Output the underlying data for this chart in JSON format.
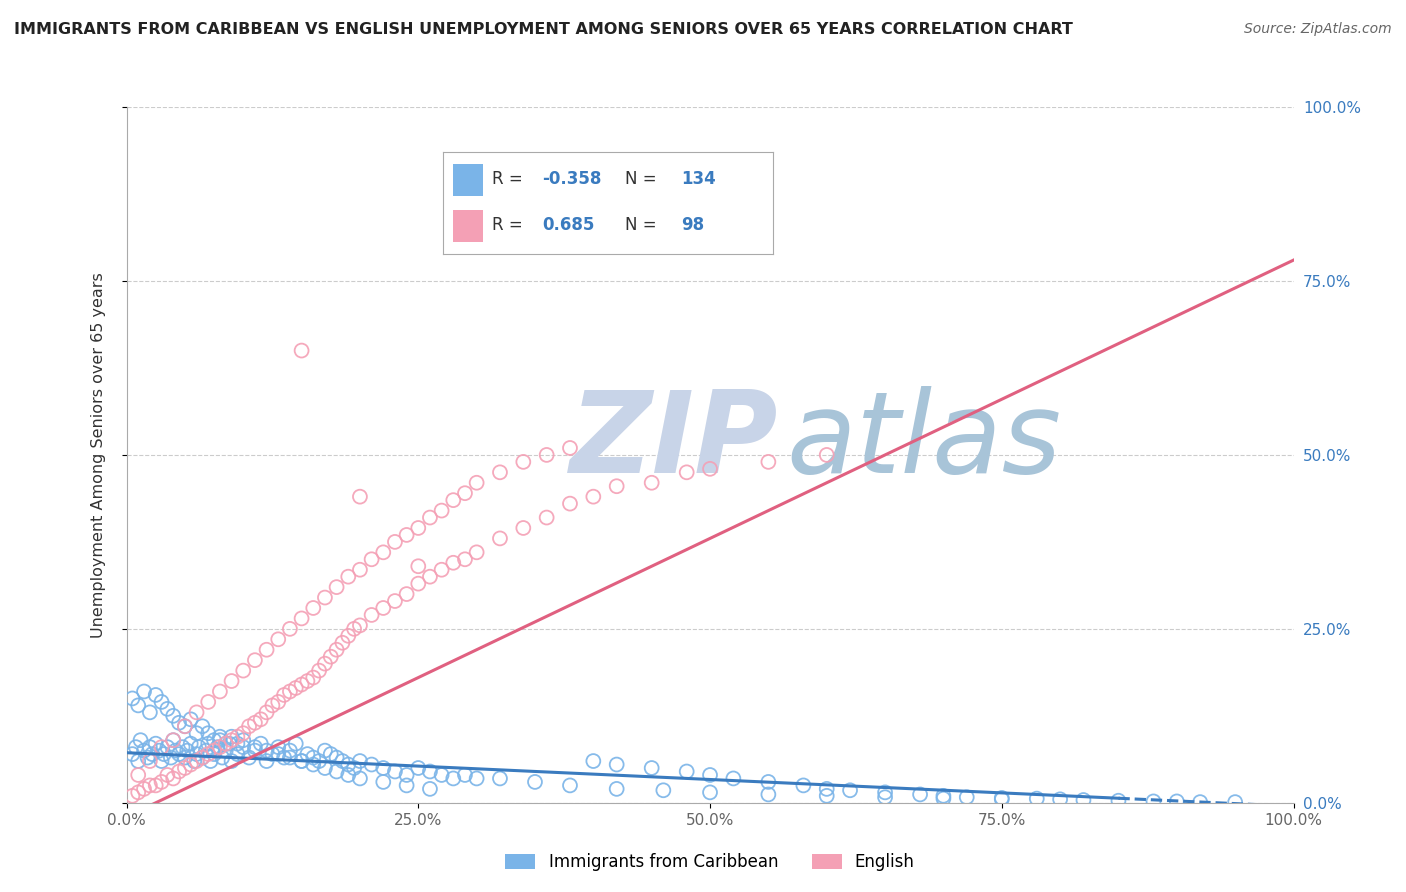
{
  "title": "IMMIGRANTS FROM CARIBBEAN VS ENGLISH UNEMPLOYMENT AMONG SENIORS OVER 65 YEARS CORRELATION CHART",
  "source": "Source: ZipAtlas.com",
  "ylabel": "Unemployment Among Seniors over 65 years",
  "xlim": [
    0,
    1
  ],
  "ylim": [
    0,
    1
  ],
  "xtick_vals": [
    0,
    0.25,
    0.5,
    0.75,
    1.0
  ],
  "xtick_labels": [
    "0.0%",
    "25.0%",
    "50.0%",
    "75.0%",
    "100.0%"
  ],
  "ytick_vals": [
    0,
    0.25,
    0.5,
    0.75,
    1.0
  ],
  "ytick_labels": [
    "0.0%",
    "25.0%",
    "50.0%",
    "75.0%",
    "100.0%"
  ],
  "series": [
    {
      "name": "Immigrants from Caribbean",
      "color": "#7ab4e8",
      "R": -0.358,
      "N": 134,
      "x": [
        0.005,
        0.008,
        0.01,
        0.012,
        0.015,
        0.018,
        0.02,
        0.022,
        0.025,
        0.028,
        0.03,
        0.032,
        0.035,
        0.038,
        0.04,
        0.042,
        0.045,
        0.048,
        0.05,
        0.052,
        0.055,
        0.058,
        0.06,
        0.062,
        0.065,
        0.068,
        0.07,
        0.072,
        0.075,
        0.078,
        0.08,
        0.082,
        0.085,
        0.088,
        0.09,
        0.095,
        0.1,
        0.105,
        0.11,
        0.115,
        0.12,
        0.125,
        0.13,
        0.135,
        0.14,
        0.145,
        0.15,
        0.155,
        0.16,
        0.165,
        0.17,
        0.175,
        0.18,
        0.185,
        0.19,
        0.195,
        0.2,
        0.21,
        0.22,
        0.23,
        0.24,
        0.25,
        0.26,
        0.27,
        0.28,
        0.29,
        0.3,
        0.005,
        0.01,
        0.015,
        0.02,
        0.025,
        0.03,
        0.035,
        0.04,
        0.045,
        0.05,
        0.055,
        0.06,
        0.065,
        0.07,
        0.075,
        0.08,
        0.085,
        0.09,
        0.095,
        0.1,
        0.11,
        0.12,
        0.13,
        0.14,
        0.15,
        0.16,
        0.17,
        0.18,
        0.19,
        0.2,
        0.22,
        0.24,
        0.26,
        0.4,
        0.42,
        0.45,
        0.48,
        0.5,
        0.52,
        0.55,
        0.58,
        0.6,
        0.62,
        0.65,
        0.68,
        0.7,
        0.72,
        0.75,
        0.78,
        0.8,
        0.82,
        0.85,
        0.88,
        0.9,
        0.92,
        0.95,
        0.35,
        0.38,
        0.32,
        0.42,
        0.46,
        0.5,
        0.55,
        0.6,
        0.65,
        0.7,
        0.75
      ],
      "y": [
        0.07,
        0.08,
        0.06,
        0.09,
        0.075,
        0.065,
        0.08,
        0.07,
        0.085,
        0.075,
        0.06,
        0.07,
        0.08,
        0.065,
        0.09,
        0.075,
        0.07,
        0.08,
        0.065,
        0.075,
        0.085,
        0.06,
        0.07,
        0.08,
        0.065,
        0.075,
        0.085,
        0.06,
        0.07,
        0.08,
        0.09,
        0.065,
        0.075,
        0.085,
        0.06,
        0.07,
        0.08,
        0.065,
        0.075,
        0.085,
        0.06,
        0.07,
        0.08,
        0.065,
        0.075,
        0.085,
        0.06,
        0.07,
        0.065,
        0.06,
        0.075,
        0.07,
        0.065,
        0.06,
        0.055,
        0.05,
        0.06,
        0.055,
        0.05,
        0.045,
        0.04,
        0.05,
        0.045,
        0.04,
        0.035,
        0.04,
        0.035,
        0.15,
        0.14,
        0.16,
        0.13,
        0.155,
        0.145,
        0.135,
        0.125,
        0.115,
        0.11,
        0.12,
        0.1,
        0.11,
        0.1,
        0.09,
        0.095,
        0.085,
        0.095,
        0.085,
        0.09,
        0.08,
        0.075,
        0.07,
        0.065,
        0.06,
        0.055,
        0.05,
        0.045,
        0.04,
        0.035,
        0.03,
        0.025,
        0.02,
        0.06,
        0.055,
        0.05,
        0.045,
        0.04,
        0.035,
        0.03,
        0.025,
        0.02,
        0.018,
        0.015,
        0.012,
        0.01,
        0.008,
        0.007,
        0.006,
        0.005,
        0.004,
        0.003,
        0.002,
        0.002,
        0.001,
        0.001,
        0.03,
        0.025,
        0.035,
        0.02,
        0.018,
        0.015,
        0.012,
        0.01,
        0.008,
        0.006,
        0.005
      ]
    },
    {
      "name": "English",
      "color": "#f4a0b5",
      "R": 0.685,
      "N": 98,
      "x": [
        0.005,
        0.01,
        0.015,
        0.02,
        0.025,
        0.03,
        0.035,
        0.04,
        0.045,
        0.05,
        0.055,
        0.06,
        0.065,
        0.07,
        0.075,
        0.08,
        0.085,
        0.09,
        0.095,
        0.1,
        0.105,
        0.11,
        0.115,
        0.12,
        0.125,
        0.13,
        0.135,
        0.14,
        0.145,
        0.15,
        0.155,
        0.16,
        0.165,
        0.17,
        0.175,
        0.18,
        0.185,
        0.19,
        0.195,
        0.2,
        0.21,
        0.22,
        0.23,
        0.24,
        0.25,
        0.26,
        0.27,
        0.28,
        0.29,
        0.3,
        0.32,
        0.34,
        0.36,
        0.38,
        0.4,
        0.42,
        0.45,
        0.48,
        0.5,
        0.55,
        0.6,
        0.01,
        0.02,
        0.03,
        0.04,
        0.05,
        0.06,
        0.07,
        0.08,
        0.09,
        0.1,
        0.11,
        0.12,
        0.13,
        0.14,
        0.15,
        0.16,
        0.17,
        0.18,
        0.19,
        0.2,
        0.21,
        0.22,
        0.23,
        0.24,
        0.25,
        0.26,
        0.27,
        0.28,
        0.29,
        0.3,
        0.32,
        0.34,
        0.36,
        0.38,
        0.15,
        0.2,
        0.25
      ],
      "y": [
        0.01,
        0.015,
        0.02,
        0.025,
        0.025,
        0.03,
        0.04,
        0.035,
        0.045,
        0.05,
        0.055,
        0.06,
        0.065,
        0.07,
        0.075,
        0.08,
        0.085,
        0.09,
        0.095,
        0.1,
        0.11,
        0.115,
        0.12,
        0.13,
        0.14,
        0.145,
        0.155,
        0.16,
        0.165,
        0.17,
        0.175,
        0.18,
        0.19,
        0.2,
        0.21,
        0.22,
        0.23,
        0.24,
        0.25,
        0.255,
        0.27,
        0.28,
        0.29,
        0.3,
        0.315,
        0.325,
        0.335,
        0.345,
        0.35,
        0.36,
        0.38,
        0.395,
        0.41,
        0.43,
        0.44,
        0.455,
        0.46,
        0.475,
        0.48,
        0.49,
        0.5,
        0.04,
        0.06,
        0.08,
        0.09,
        0.11,
        0.13,
        0.145,
        0.16,
        0.175,
        0.19,
        0.205,
        0.22,
        0.235,
        0.25,
        0.265,
        0.28,
        0.295,
        0.31,
        0.325,
        0.335,
        0.35,
        0.36,
        0.375,
        0.385,
        0.395,
        0.41,
        0.42,
        0.435,
        0.445,
        0.46,
        0.475,
        0.49,
        0.5,
        0.51,
        0.65,
        0.44,
        0.34
      ]
    }
  ],
  "blue_line": {
    "x0": 0.0,
    "x1": 1.0,
    "y0": 0.072,
    "y1": -0.005
  },
  "pink_line": {
    "x0": 0.0,
    "x1": 1.0,
    "y0": -0.02,
    "y1": 0.78
  },
  "blue_line_solid_end": 0.85,
  "watermark_zip": "ZIP",
  "watermark_atlas": "atlas",
  "watermark_color_zip": "#c8d4e8",
  "watermark_color_atlas": "#a8c4d8",
  "title_color": "#222222",
  "source_color": "#666666",
  "grid_color": "#cccccc",
  "legend_label_color": "#333333",
  "legend_value_color": "#3a7bbf",
  "blue_line_color": "#3a7bbf",
  "pink_line_color": "#e06080",
  "right_tick_color": "#3a7bbf",
  "left_tick_color": "#666666",
  "background_color": "#ffffff"
}
